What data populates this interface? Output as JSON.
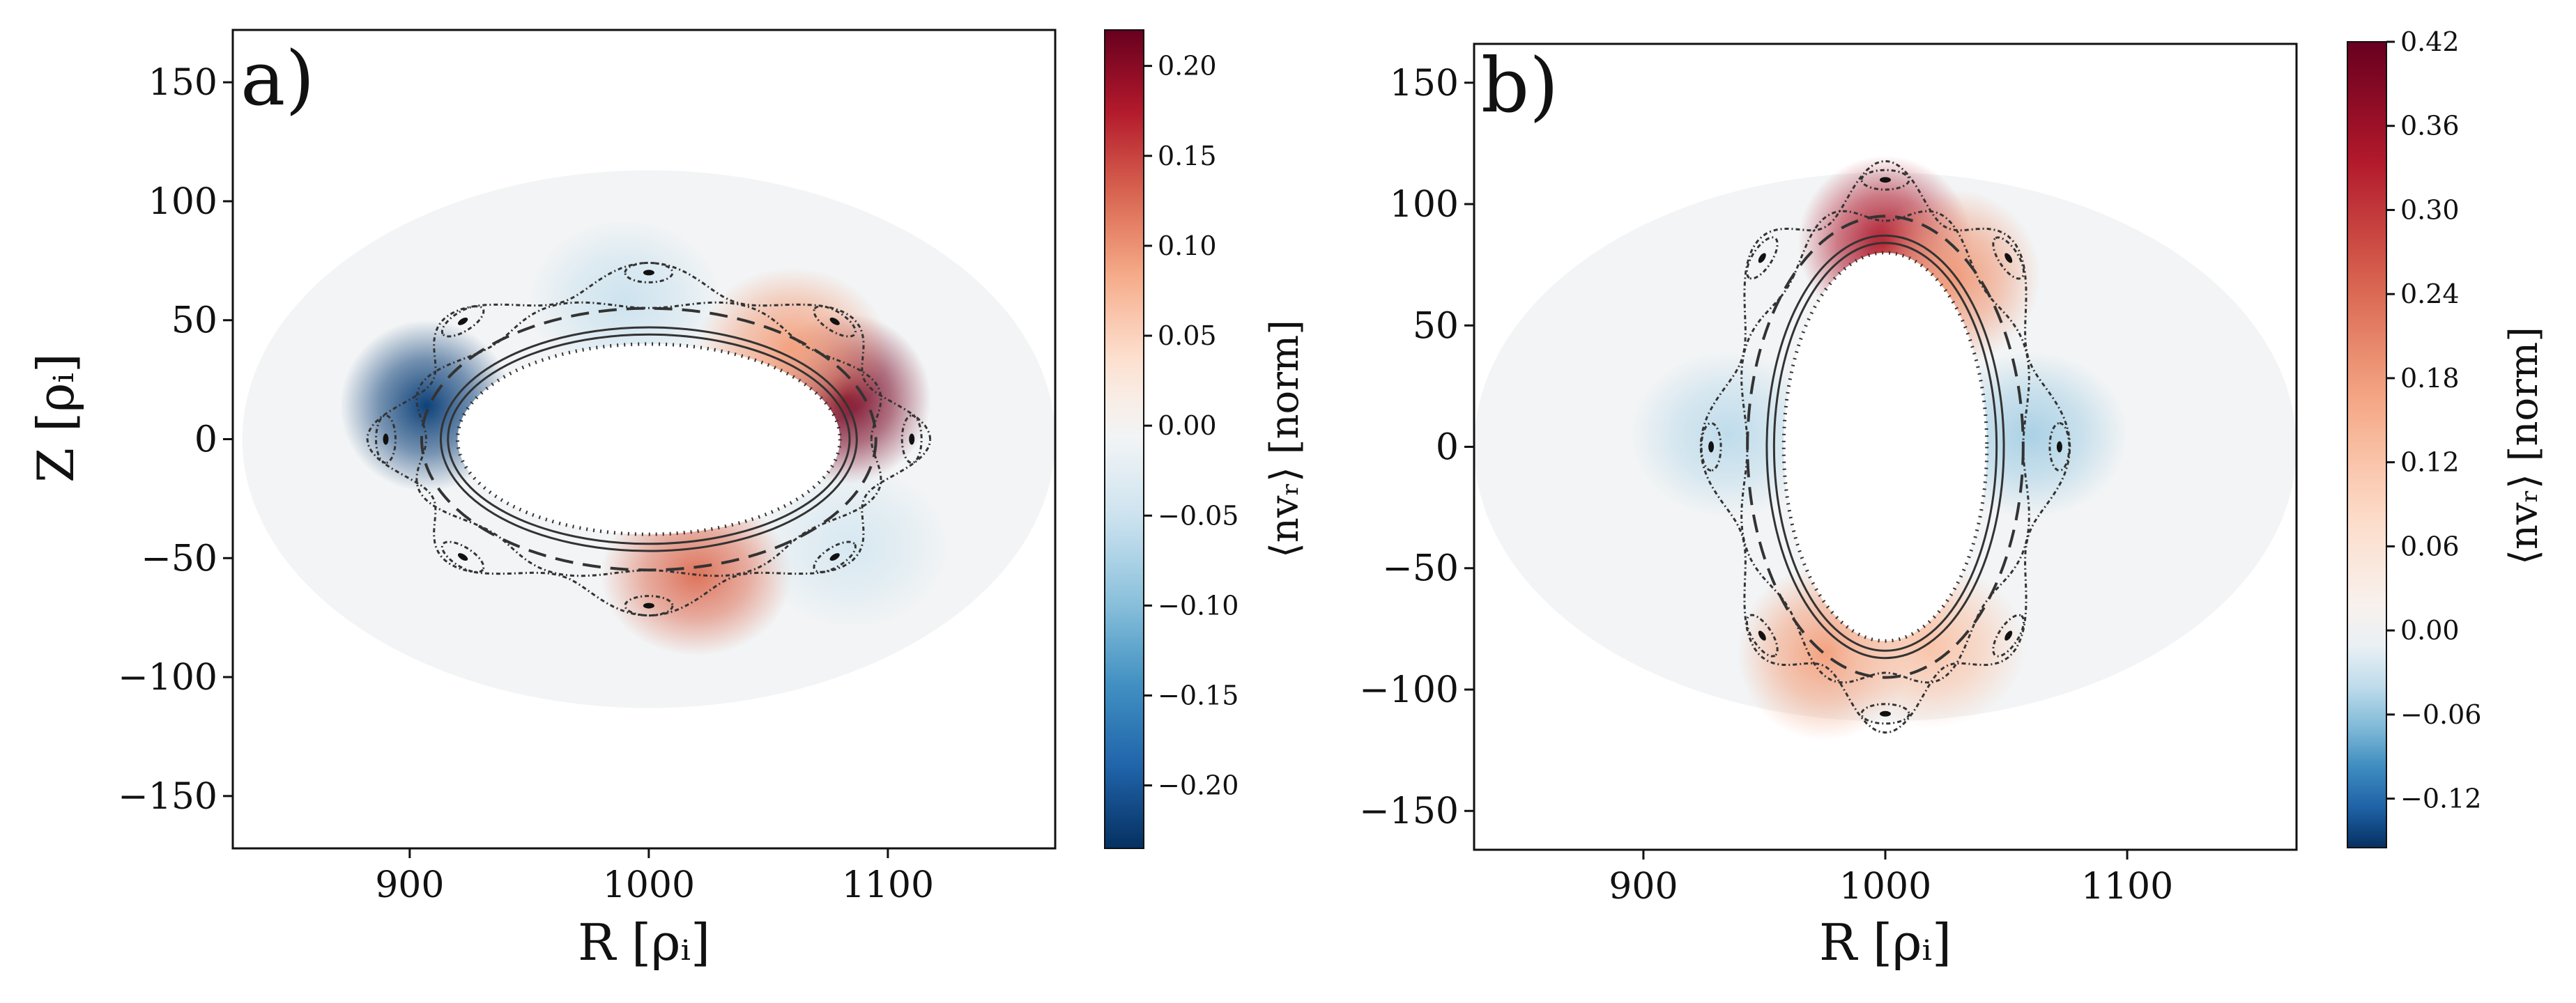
{
  "colors": {
    "background": "#ffffff",
    "axis": "#111111",
    "domain_fill": "#f2f4f5",
    "contour": "#333333"
  },
  "chart_data": [
    {
      "type": "heatmap",
      "panel_label": "a)",
      "xlabel": "R [ρᵢ]",
      "ylabel": "Z [ρᵢ]",
      "xlim": [
        826,
        1170
      ],
      "ylim": [
        -172,
        172
      ],
      "xticks": [
        900,
        1000,
        1100
      ],
      "xtick_labels": [
        "900",
        "1000",
        "1100"
      ],
      "yticks": [
        150,
        100,
        50,
        0,
        -50,
        -100,
        -150
      ],
      "ytick_labels": [
        "150",
        "100",
        "50",
        "0",
        "−50",
        "−100",
        "−150"
      ],
      "domain": {
        "r0": 1000,
        "a_r": 170,
        "a_z": 113
      },
      "core": {
        "r0": 1000,
        "a_r": 80,
        "a_z": 40
      },
      "colorbar": {
        "label": "⟨nvᵣ⟩  [norm]",
        "min": -0.235,
        "max": 0.22,
        "ticks": [
          0.2,
          0.15,
          0.1,
          0.05,
          0.0,
          -0.05,
          -0.1,
          -0.15,
          -0.2
        ],
        "tick_labels": [
          "0.20",
          "0.15",
          "0.10",
          "0.05",
          "0.00",
          "−0.05",
          "−0.10",
          "−0.15",
          "−0.20"
        ],
        "colorscale": "RdBu_r"
      },
      "blobs": [
        {
          "r": 907,
          "z": 14,
          "amp": -0.22
        },
        {
          "r": 1082,
          "z": 17,
          "amp": 0.21
        },
        {
          "r": 1020,
          "z": -57,
          "amp": 0.12
        },
        {
          "r": 1060,
          "z": 38,
          "amp": 0.09
        },
        {
          "r": 990,
          "z": 58,
          "amp": -0.05
        },
        {
          "r": 1085,
          "z": -45,
          "amp": -0.04
        }
      ],
      "islands": 8,
      "separatrix": {
        "inner": 52,
        "outer": 72,
        "z_scale": 0.82
      }
    },
    {
      "type": "heatmap",
      "panel_label": "b)",
      "xlabel": "R [ρᵢ]",
      "ylabel": "",
      "xlim": [
        830,
        1170
      ],
      "ylim": [
        -166,
        166
      ],
      "xticks": [
        900,
        1000,
        1100
      ],
      "xtick_labels": [
        "900",
        "1000",
        "1100"
      ],
      "yticks": [
        150,
        100,
        50,
        0,
        -50,
        -100,
        -150
      ],
      "ytick_labels": [
        "150",
        "100",
        "50",
        "0",
        "−50",
        "−100",
        "−150"
      ],
      "domain": {
        "r0": 1000,
        "a_r": 170,
        "a_z": 113
      },
      "core": {
        "r0": 1000,
        "a_r": 42,
        "a_z": 80
      },
      "colorbar": {
        "label": "⟨nvᵣ⟩  [norm]",
        "min": -0.155,
        "max": 0.42,
        "ticks": [
          0.42,
          0.36,
          0.3,
          0.24,
          0.18,
          0.12,
          0.06,
          0.0,
          -0.06,
          -0.12
        ],
        "tick_labels": [
          "0.42",
          "0.36",
          "0.30",
          "0.24",
          "0.18",
          "0.12",
          "0.06",
          "0.00",
          "−0.06",
          "−0.12"
        ],
        "colorscale": "RdBu_r"
      },
      "blobs": [
        {
          "r": 1000,
          "z": 84,
          "amp": 0.34
        },
        {
          "r": 1028,
          "z": 70,
          "amp": 0.18
        },
        {
          "r": 975,
          "z": -85,
          "amp": 0.17
        },
        {
          "r": 1018,
          "z": -82,
          "amp": 0.12
        },
        {
          "r": 935,
          "z": 5,
          "amp": -0.04
        },
        {
          "r": 1060,
          "z": 5,
          "amp": -0.05
        }
      ],
      "islands": 8,
      "separatrix": {
        "inner": 52,
        "outer": 72,
        "z_scale": 1.0
      }
    }
  ]
}
